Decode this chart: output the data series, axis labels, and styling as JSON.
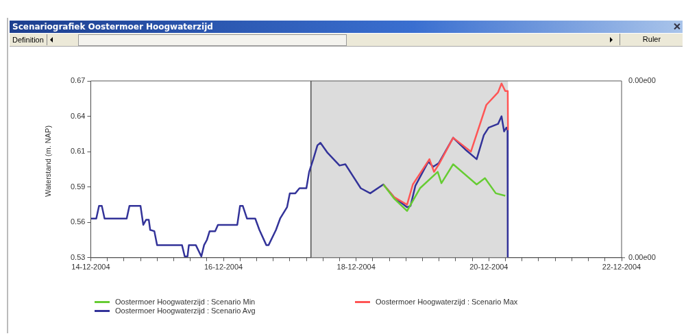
{
  "chart_data": {
    "type": "line",
    "title": "Scenariografiek Oostermoer Hoogwaterzijd",
    "ylabel": "Waterstand (m. NAP)",
    "annotations": [
      "Definition",
      "Ruler",
      "0.00e00",
      "0.00e00"
    ],
    "legend": "bottom",
    "grid": false,
    "marker": "none",
    "line_style": "solid",
    "xlim": [
      "2004-12-14",
      "2004-12-22"
    ],
    "xticks": [
      {
        "value": "2004-12-14",
        "label": "14-12-2004"
      },
      {
        "value": "2004-12-14T06:00",
        "label": null
      },
      {
        "value": "2004-12-14T12:00",
        "label": null
      },
      {
        "value": "2004-12-14T18:00",
        "label": null
      },
      {
        "value": "2004-12-15",
        "label": null
      },
      {
        "value": "2004-12-15T06:00",
        "label": null
      },
      {
        "value": "2004-12-15T12:00",
        "label": null
      },
      {
        "value": "2004-12-15T18:00",
        "label": null
      },
      {
        "value": "2004-12-16",
        "label": "16-12-2004"
      },
      {
        "value": "2004-12-16T06:00",
        "label": null
      },
      {
        "value": "2004-12-16T12:00",
        "label": null
      },
      {
        "value": "2004-12-16T18:00",
        "label": null
      },
      {
        "value": "2004-12-17",
        "label": null
      },
      {
        "value": "2004-12-17T06:00",
        "label": null
      },
      {
        "value": "2004-12-17T12:00",
        "label": null
      },
      {
        "value": "2004-12-17T18:00",
        "label": null
      },
      {
        "value": "2004-12-18",
        "label": "18-12-2004"
      },
      {
        "value": "2004-12-18T06:00",
        "label": null
      },
      {
        "value": "2004-12-18T12:00",
        "label": null
      },
      {
        "value": "2004-12-18T18:00",
        "label": null
      },
      {
        "value": "2004-12-19",
        "label": null
      },
      {
        "value": "2004-12-19T06:00",
        "label": null
      },
      {
        "value": "2004-12-19T12:00",
        "label": null
      },
      {
        "value": "2004-12-19T18:00",
        "label": null
      },
      {
        "value": "2004-12-20",
        "label": "20-12-2004"
      },
      {
        "value": "2004-12-20T06:00",
        "label": null
      },
      {
        "value": "2004-12-20T12:00",
        "label": null
      },
      {
        "value": "2004-12-20T18:00",
        "label": null
      },
      {
        "value": "2004-12-21",
        "label": null
      },
      {
        "value": "2004-12-21T06:00",
        "label": null
      },
      {
        "value": "2004-12-21T12:00",
        "label": null
      },
      {
        "value": "2004-12-21T18:00",
        "label": null
      },
      {
        "value": "2004-12-22",
        "label": "22-12-2004"
      }
    ],
    "ylim": [
      0.53,
      0.67
    ],
    "yticks": [
      {
        "value": 0.53,
        "label": "0.53"
      },
      {
        "value": 0.558,
        "label": "0.56"
      },
      {
        "value": 0.586,
        "label": "0.59"
      },
      {
        "value": 0.614,
        "label": "0.61"
      },
      {
        "value": 0.642,
        "label": "0.64"
      },
      {
        "value": 0.67,
        "label": "0.67"
      }
    ],
    "bands": [
      {
        "axis": "x",
        "from": "2004-12-17T07:40",
        "to": "2004-12-20T06:55",
        "color": "#dcdcdc"
      }
    ],
    "ref_lines": [
      {
        "axis": "x",
        "value": "2004-12-17T07:40",
        "color": "#000000",
        "line_style": "solid"
      }
    ],
    "series": [
      {
        "name": "Oostermoer Hoogwaterzijd : Scenario Min",
        "color": "#66cc33",
        "x": [
          "2004-12-18T09:50",
          "2004-12-18T13:40",
          "2004-12-18T18:25",
          "2004-12-18T23:05",
          "2004-12-19T05:30",
          "2004-12-19T06:50",
          "2004-12-19T11:05",
          "2004-12-19T19:35",
          "2004-12-19T22:35",
          "2004-12-20T02:30",
          "2004-12-20T05:55"
        ],
        "values": [
          0.588,
          0.577,
          0.567,
          0.585,
          0.598,
          0.589,
          0.604,
          0.588,
          0.593,
          0.581,
          0.579
        ]
      },
      {
        "name": "Oostermoer Hoogwaterzijd : Scenario Max",
        "color": "#ff5555",
        "x": [
          "2004-12-18T09:50",
          "2004-12-18T13:40",
          "2004-12-18T18:25",
          "2004-12-18T20:30",
          "2004-12-19T02:30",
          "2004-12-19T04:10",
          "2004-12-19T05:55",
          "2004-12-19T11:05",
          "2004-12-19T17:30",
          "2004-12-19T23:05",
          "2004-12-20T03:20",
          "2004-12-20T04:35",
          "2004-12-20T05:55",
          "2004-12-20T06:50",
          "2004-12-20T06:55"
        ],
        "values": [
          0.588,
          0.578,
          0.572,
          0.588,
          0.608,
          0.598,
          0.604,
          0.625,
          0.614,
          0.651,
          0.661,
          0.668,
          0.662,
          0.662,
          0.631
        ]
      },
      {
        "name": "Oostermoer Hoogwaterzijd : Scenario Avg",
        "color": "#333399",
        "x": [
          "2004-12-14T00:00",
          "2004-12-14T02:00",
          "2004-12-14T03:00",
          "2004-12-14T04:00",
          "2004-12-14T05:00",
          "2004-12-14T13:00",
          "2004-12-14T14:00",
          "2004-12-14T18:00",
          "2004-12-14T19:00",
          "2004-12-14T20:00",
          "2004-12-14T21:00",
          "2004-12-14T21:30",
          "2004-12-14T23:00",
          "2004-12-15T00:00",
          "2004-12-15T09:00",
          "2004-12-15T10:00",
          "2004-12-15T11:00",
          "2004-12-15T11:30",
          "2004-12-15T14:00",
          "2004-12-15T16:00",
          "2004-12-15T17:00",
          "2004-12-15T18:00",
          "2004-12-15T19:00",
          "2004-12-15T21:00",
          "2004-12-15T22:00",
          "2004-12-16T05:00",
          "2004-12-16T06:00",
          "2004-12-16T07:00",
          "2004-12-16T08:30",
          "2004-12-16T11:30",
          "2004-12-16T13:00",
          "2004-12-16T15:30",
          "2004-12-16T16:20",
          "2004-12-16T19:00",
          "2004-12-16T20:30",
          "2004-12-16T23:00",
          "2004-12-17T00:00",
          "2004-12-17T02:00",
          "2004-12-17T03:30",
          "2004-12-17T06:00",
          "2004-12-17T07:00",
          "2004-12-17T08:30",
          "2004-12-17T10:00",
          "2004-12-17T11:05",
          "2004-12-17T13:40",
          "2004-12-17T18:00",
          "2004-12-17T20:05",
          "2004-12-18T01:40",
          "2004-12-18T05:05",
          "2004-12-18T09:50",
          "2004-12-18T13:40",
          "2004-12-18T18:25",
          "2004-12-18T19:40",
          "2004-12-18T21:25",
          "2004-12-19T02:05",
          "2004-12-19T03:50",
          "2004-12-19T05:55",
          "2004-12-19T11:05",
          "2004-12-19T15:50",
          "2004-12-19T19:35",
          "2004-12-19T22:10",
          "2004-12-19T23:55",
          "2004-12-20T03:20",
          "2004-12-20T04:35",
          "2004-12-20T05:30",
          "2004-12-20T06:20",
          "2004-12-20T06:45",
          "2004-12-20T06:50"
        ],
        "values": [
          0.561,
          0.561,
          0.571,
          0.571,
          0.561,
          0.561,
          0.571,
          0.571,
          0.556,
          0.56,
          0.56,
          0.552,
          0.551,
          0.54,
          0.54,
          0.531,
          0.531,
          0.54,
          0.54,
          0.531,
          0.54,
          0.544,
          0.551,
          0.551,
          0.556,
          0.556,
          0.571,
          0.571,
          0.561,
          0.561,
          0.552,
          0.54,
          0.54,
          0.552,
          0.561,
          0.57,
          0.581,
          0.581,
          0.585,
          0.585,
          0.598,
          0.608,
          0.619,
          0.621,
          0.613,
          0.603,
          0.604,
          0.585,
          0.581,
          0.588,
          0.578,
          0.57,
          0.571,
          0.587,
          0.606,
          0.602,
          0.605,
          0.625,
          0.615,
          0.608,
          0.627,
          0.633,
          0.636,
          0.642,
          0.63,
          0.633,
          0.631,
          0.53
        ]
      }
    ]
  }
}
